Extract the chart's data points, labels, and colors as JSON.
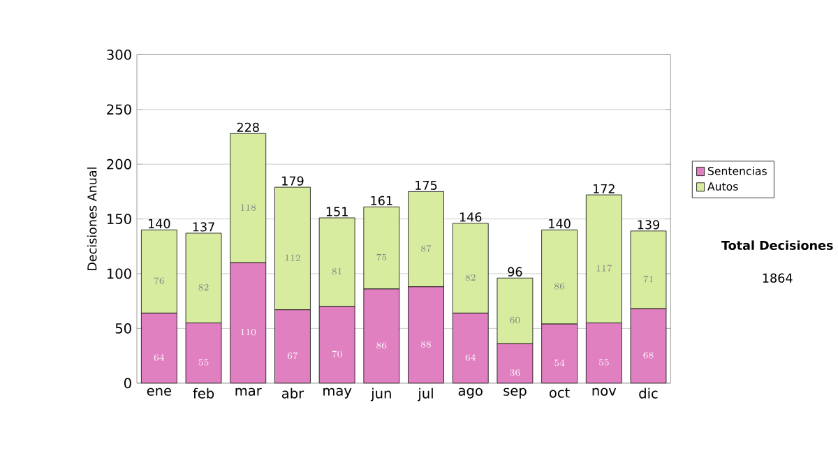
{
  "chart_data": {
    "type": "bar",
    "stacked": true,
    "categories": [
      "ene",
      "feb",
      "mar",
      "abr",
      "may",
      "jun",
      "jul",
      "ago",
      "sep",
      "oct",
      "nov",
      "dic"
    ],
    "series": [
      {
        "name": "Sentencias",
        "color": "#e080c0",
        "values": [
          64,
          55,
          110,
          67,
          70,
          86,
          88,
          64,
          36,
          54,
          55,
          68
        ]
      },
      {
        "name": "Autos",
        "color": "#d8eca0",
        "values": [
          76,
          82,
          118,
          112,
          81,
          75,
          87,
          82,
          60,
          86,
          117,
          71
        ]
      }
    ],
    "ylabel": "Decisiones Anual",
    "ylim": [
      0,
      300
    ],
    "yticks": [
      0,
      50,
      100,
      150,
      200,
      250,
      300
    ],
    "grid": "y",
    "legend": "right",
    "data_labels": true,
    "totals": [
      "140",
      "137",
      "228",
      "179",
      "151",
      "161",
      "175",
      "146",
      "96",
      "140",
      "172",
      "139"
    ],
    "annotations": [
      "**Total Decisiones**",
      "1864"
    ]
  }
}
